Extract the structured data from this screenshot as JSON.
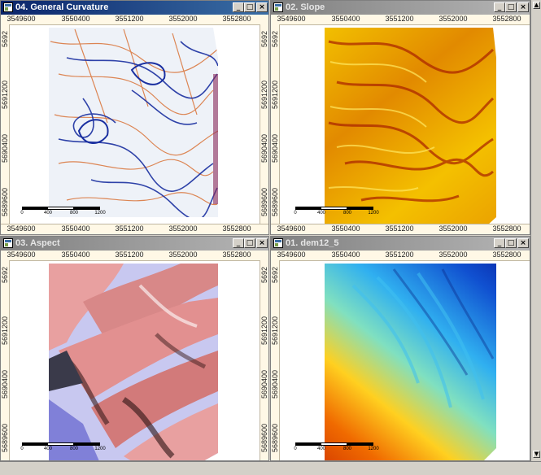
{
  "windows": [
    {
      "id": "curv",
      "title": "04. General Curvature",
      "active": true,
      "top_ticks": [
        "3549600",
        "3550400",
        "3551200",
        "3552000",
        "3552800"
      ],
      "bottom_ticks": [
        "3549600",
        "3550400",
        "3551200",
        "3552000",
        "3552800"
      ],
      "left_ticks": [
        "5692",
        "5691200",
        "5690400",
        "5689600"
      ],
      "right_ticks": [
        "5692",
        "5691200",
        "5690400",
        "5689600"
      ],
      "scale_labels": [
        "0",
        "400",
        "800",
        "1200"
      ]
    },
    {
      "id": "slope",
      "title": "02. Slope",
      "active": false,
      "top_ticks": [
        "3549600",
        "3550400",
        "3551200",
        "3552000",
        "3552800"
      ],
      "bottom_ticks": [
        "3549600",
        "3550400",
        "3551200",
        "3552000",
        "3552800"
      ],
      "left_ticks": [
        "5692",
        "5691200",
        "5690400",
        "5689600"
      ],
      "right_ticks": [],
      "scale_labels": [
        "0",
        "400",
        "800",
        "1200"
      ]
    },
    {
      "id": "aspect",
      "title": "03. Aspect",
      "active": false,
      "top_ticks": [
        "3549600",
        "3550400",
        "3551200",
        "3552000",
        "3552800"
      ],
      "bottom_ticks": [],
      "left_ticks": [
        "5692",
        "5691200",
        "5690400",
        "5689600"
      ],
      "right_ticks": [
        "5692",
        "5691200",
        "5690400",
        "5689600"
      ],
      "scale_labels": [
        "0",
        "400",
        "800",
        "1200"
      ]
    },
    {
      "id": "dem",
      "title": "01. dem12_5",
      "active": false,
      "top_ticks": [
        "3549600",
        "3550400",
        "3551200",
        "3552000",
        "3552800"
      ],
      "bottom_ticks": [],
      "left_ticks": [
        "5692",
        "5691200",
        "5690400",
        "5689600"
      ],
      "right_ticks": [],
      "scale_labels": [
        "0",
        "400",
        "800",
        "1200"
      ]
    }
  ],
  "controls": {
    "minimize": "_",
    "maximize": "□",
    "close": "×"
  },
  "icons": {
    "window": "map-window-icon",
    "scroll_up": "arrow-up-icon",
    "scroll_down": "arrow-down-icon"
  },
  "colors": {
    "active_title": "#0a246a",
    "inactive_title": "#808080",
    "ruler_bg": "#fff8e6"
  }
}
